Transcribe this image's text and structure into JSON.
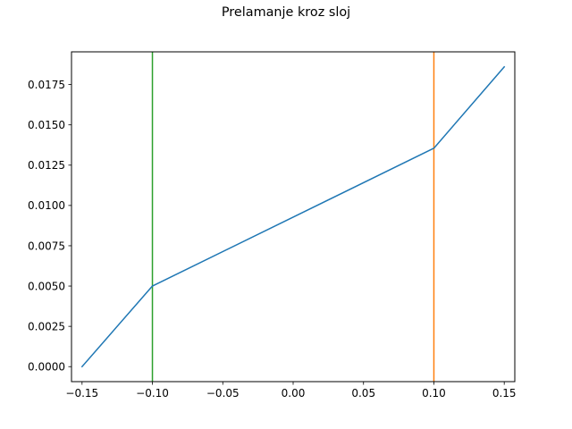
{
  "chart_data": {
    "type": "line",
    "title": "Prelamanje kroz sloj",
    "xlabel": "",
    "ylabel": "",
    "xlim": [
      -0.1575,
      0.1575
    ],
    "ylim": [
      -0.00093,
      0.01953
    ],
    "grid": false,
    "xticks": [
      {
        "value": -0.15,
        "label": "−0.15"
      },
      {
        "value": -0.1,
        "label": "−0.10"
      },
      {
        "value": -0.05,
        "label": "−0.05"
      },
      {
        "value": 0.0,
        "label": "0.00"
      },
      {
        "value": 0.05,
        "label": "0.05"
      },
      {
        "value": 0.1,
        "label": "0.10"
      },
      {
        "value": 0.15,
        "label": "0.15"
      }
    ],
    "yticks": [
      {
        "value": 0.0,
        "label": "0.0000"
      },
      {
        "value": 0.0025,
        "label": "0.0025"
      },
      {
        "value": 0.005,
        "label": "0.0050"
      },
      {
        "value": 0.0075,
        "label": "0.0075"
      },
      {
        "value": 0.01,
        "label": "0.0100"
      },
      {
        "value": 0.0125,
        "label": "0.0125"
      },
      {
        "value": 0.015,
        "label": "0.0150"
      },
      {
        "value": 0.0175,
        "label": "0.0175"
      }
    ],
    "series": [
      {
        "color": "#1f77b4",
        "x": [
          -0.15,
          -0.1,
          0.1,
          0.15
        ],
        "y": [
          0.0,
          0.005,
          0.01355,
          0.0186
        ]
      }
    ],
    "vlines": [
      {
        "x": -0.1,
        "color": "#2ca02c"
      },
      {
        "x": 0.1,
        "color": "#ff7f0e"
      }
    ]
  }
}
